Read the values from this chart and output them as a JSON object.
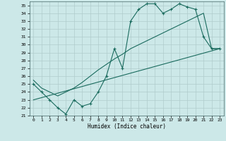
{
  "xlabel": "Humidex (Indice chaleur)",
  "bg_color": "#cce8e8",
  "grid_color": "#b0cccc",
  "line_color": "#1a6b5e",
  "xlim": [
    -0.5,
    23.5
  ],
  "ylim": [
    21,
    35.5
  ],
  "xticks": [
    0,
    1,
    2,
    3,
    4,
    5,
    6,
    7,
    8,
    9,
    10,
    11,
    12,
    13,
    14,
    15,
    16,
    17,
    18,
    19,
    20,
    21,
    22,
    23
  ],
  "yticks": [
    21,
    22,
    23,
    24,
    25,
    26,
    27,
    28,
    29,
    30,
    31,
    32,
    33,
    34,
    35
  ],
  "line1_x": [
    0,
    1,
    2,
    3,
    4,
    5,
    6,
    7,
    8,
    9,
    10,
    11,
    12,
    13,
    14,
    15,
    16,
    17,
    18,
    19,
    20,
    21,
    22,
    23
  ],
  "line1_y": [
    25.0,
    24.0,
    23.0,
    22.0,
    21.2,
    23.0,
    22.2,
    22.5,
    24.0,
    26.0,
    29.5,
    27.0,
    33.0,
    34.5,
    35.2,
    35.2,
    34.0,
    34.5,
    35.2,
    34.8,
    34.5,
    31.0,
    29.5,
    29.5
  ],
  "line2_x": [
    0,
    1,
    2,
    3,
    4,
    5,
    6,
    7,
    8,
    9,
    10,
    11,
    12,
    13,
    14,
    15,
    16,
    17,
    18,
    19,
    20,
    21,
    22,
    23
  ],
  "line2_y": [
    25.5,
    24.5,
    24.0,
    23.5,
    24.0,
    24.5,
    25.2,
    26.0,
    26.8,
    27.5,
    28.2,
    28.8,
    29.5,
    30.0,
    30.5,
    31.0,
    31.5,
    32.0,
    32.5,
    33.0,
    33.5,
    34.0,
    29.5,
    29.5
  ],
  "line3_x": [
    0,
    23
  ],
  "line3_y": [
    23.0,
    29.5
  ]
}
